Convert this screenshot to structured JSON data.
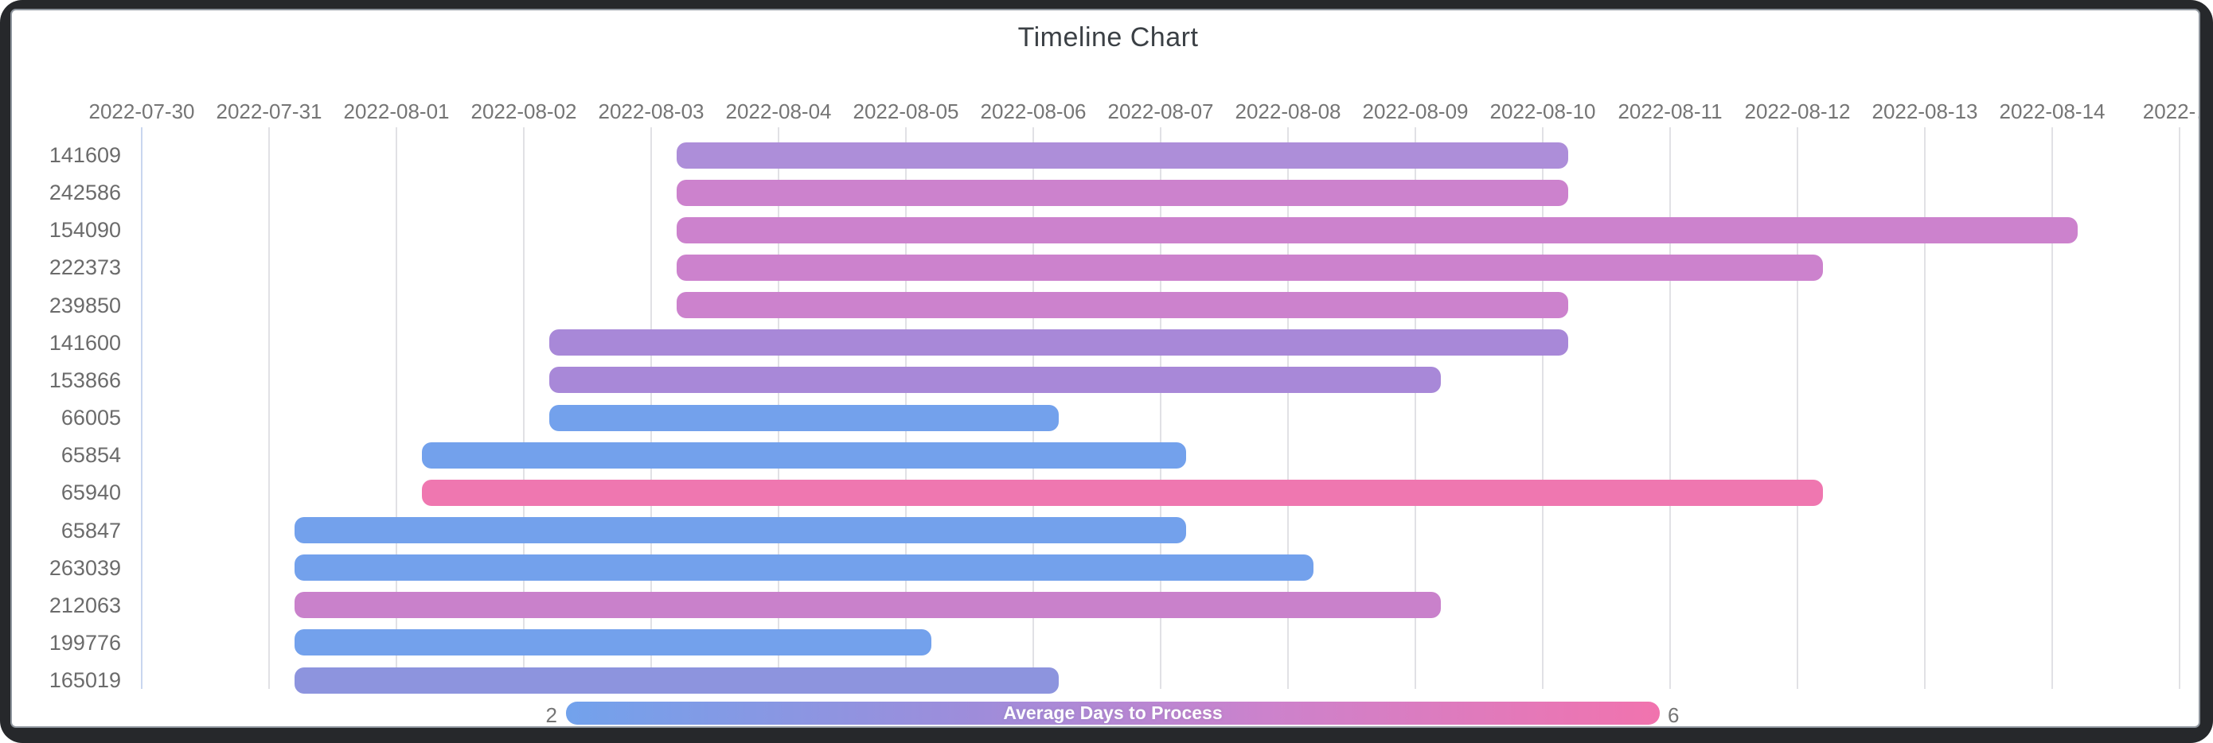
{
  "title": "Timeline Chart",
  "chart_data": {
    "type": "timeline_gantt",
    "title": "Timeline Chart",
    "x_axis": {
      "labels": [
        "2022-07-30",
        "2022-07-31",
        "2022-08-01",
        "2022-08-02",
        "2022-08-03",
        "2022-08-04",
        "2022-08-05",
        "2022-08-06",
        "2022-08-07",
        "2022-08-08",
        "2022-08-09",
        "2022-08-10",
        "2022-08-11",
        "2022-08-12",
        "2022-08-13",
        "2022-08-14",
        "2022-…"
      ],
      "first_day": "2022-07-30",
      "days_visible": 16,
      "grid": "on"
    },
    "rows": [
      {
        "label": "141609",
        "start_day": 4.2,
        "end_day": 11.2,
        "duration_days": 7,
        "color": "#ad8ed9"
      },
      {
        "label": "242586",
        "start_day": 4.2,
        "end_day": 11.2,
        "duration_days": 7,
        "color": "#cc82cd"
      },
      {
        "label": "154090",
        "start_day": 4.2,
        "end_day": 15.2,
        "duration_days": 11,
        "color": "#cc82cd"
      },
      {
        "label": "222373",
        "start_day": 4.2,
        "end_day": 13.2,
        "duration_days": 9,
        "color": "#cc82cd"
      },
      {
        "label": "239850",
        "start_day": 4.2,
        "end_day": 11.2,
        "duration_days": 7,
        "color": "#cc82cd"
      },
      {
        "label": "141600",
        "start_day": 3.2,
        "end_day": 11.2,
        "duration_days": 8,
        "color": "#a888d8"
      },
      {
        "label": "153866",
        "start_day": 3.2,
        "end_day": 10.2,
        "duration_days": 7,
        "color": "#a888d8"
      },
      {
        "label": "66005",
        "start_day": 3.2,
        "end_day": 7.2,
        "duration_days": 4,
        "color": "#73a1ec"
      },
      {
        "label": "65854",
        "start_day": 2.2,
        "end_day": 8.2,
        "duration_days": 6,
        "color": "#73a1ec"
      },
      {
        "label": "65940",
        "start_day": 2.2,
        "end_day": 13.2,
        "duration_days": 11,
        "color": "#ef77b0"
      },
      {
        "label": "65847",
        "start_day": 1.2,
        "end_day": 8.2,
        "duration_days": 7,
        "color": "#73a1ec"
      },
      {
        "label": "263039",
        "start_day": 1.2,
        "end_day": 9.2,
        "duration_days": 8,
        "color": "#73a1ec"
      },
      {
        "label": "212063",
        "start_day": 1.2,
        "end_day": 10.2,
        "duration_days": 9,
        "color": "#c981cb"
      },
      {
        "label": "199776",
        "start_day": 1.2,
        "end_day": 6.2,
        "duration_days": 5,
        "color": "#73a1ec"
      },
      {
        "label": "165019",
        "start_day": 1.2,
        "end_day": 7.2,
        "duration_days": 6,
        "color": "#8d94de"
      }
    ],
    "legend": {
      "title": "Average Days to Process",
      "min": "2",
      "max": "6",
      "gradient_stops": [
        "#72a2ec",
        "#9f8cda",
        "#cc82cc",
        "#f173ae"
      ],
      "position": "bottom"
    }
  }
}
